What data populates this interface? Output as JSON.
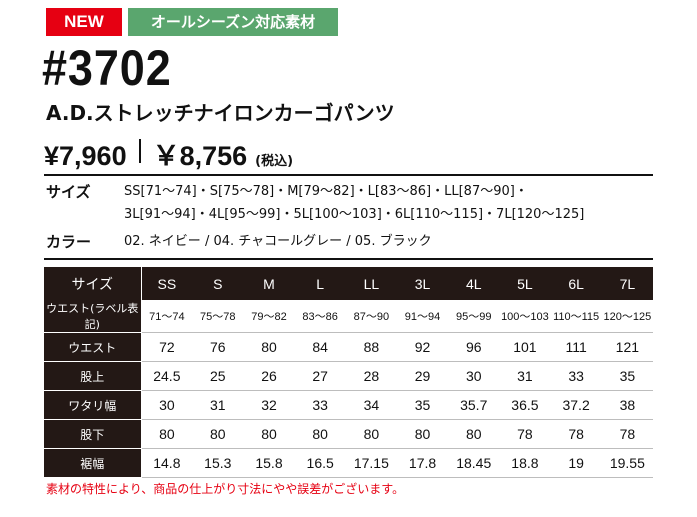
{
  "badges": {
    "new": "NEW",
    "season": "オールシーズン対応素材"
  },
  "model_number": "#3702",
  "product_name": "A.D.ストレッチナイロンカーゴパンツ",
  "price": {
    "base": "¥7,960",
    "tax_included": "￥8,756",
    "tax_note": "(税込)"
  },
  "specs": {
    "size_label": "サイズ",
    "size_line1": "SS[71～74]・S[75～78]・M[79～82]・L[83～86]・LL[87～90]・",
    "size_line2": "3L[91～94]・4L[95～99]・5L[100～103]・6L[110～115]・7L[120～125]",
    "color_label": "カラー",
    "color_text": "02. ネイビー / 04. チャコールグレー / 05. ブラック"
  },
  "size_table": {
    "header_label": "サイズ",
    "sizes": [
      "SS",
      "S",
      "M",
      "L",
      "LL",
      "3L",
      "4L",
      "5L",
      "6L",
      "7L"
    ],
    "rows": [
      {
        "label": "ウエスト(ラベル表記)",
        "values": [
          "71～74",
          "75～78",
          "79～82",
          "83～86",
          "87～90",
          "91～94",
          "95～99",
          "100～103",
          "110～115",
          "120～125"
        ]
      },
      {
        "label": "ウエスト",
        "values": [
          "72",
          "76",
          "80",
          "84",
          "88",
          "92",
          "96",
          "101",
          "111",
          "121"
        ]
      },
      {
        "label": "股上",
        "values": [
          "24.5",
          "25",
          "26",
          "27",
          "28",
          "29",
          "30",
          "31",
          "33",
          "35"
        ]
      },
      {
        "label": "ワタリ幅",
        "values": [
          "30",
          "31",
          "32",
          "33",
          "34",
          "35",
          "35.7",
          "36.5",
          "37.2",
          "38"
        ]
      },
      {
        "label": "股下",
        "values": [
          "80",
          "80",
          "80",
          "80",
          "80",
          "80",
          "80",
          "78",
          "78",
          "78"
        ]
      },
      {
        "label": "裾幅",
        "values": [
          "14.8",
          "15.3",
          "15.8",
          "16.5",
          "17.15",
          "17.8",
          "18.45",
          "18.8",
          "19",
          "19.55"
        ]
      }
    ]
  },
  "note": "素材の特性により、商品の仕上がり寸法にやや誤差がございます。"
}
